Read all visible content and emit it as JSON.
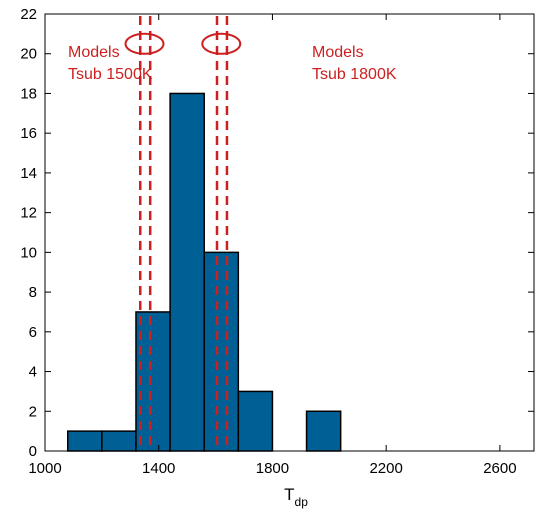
{
  "chart_data": {
    "type": "bar",
    "title": "",
    "xlabel": "T",
    "xlabel_sub": "dp",
    "ylabel": "",
    "xlim": [
      1000,
      2720
    ],
    "ylim": [
      0,
      22
    ],
    "xticks": [
      1000,
      1400,
      1800,
      2200,
      2600
    ],
    "yticks": [
      0,
      2,
      4,
      6,
      8,
      10,
      12,
      14,
      16,
      18,
      20,
      22
    ],
    "bins": [
      {
        "x0": 1080,
        "x1": 1200,
        "value": 1
      },
      {
        "x0": 1200,
        "x1": 1320,
        "value": 1
      },
      {
        "x0": 1320,
        "x1": 1440,
        "value": 7
      },
      {
        "x0": 1440,
        "x1": 1560,
        "value": 18
      },
      {
        "x0": 1560,
        "x1": 1680,
        "value": 10
      },
      {
        "x0": 1680,
        "x1": 1800,
        "value": 3
      },
      {
        "x0": 1920,
        "x1": 2040,
        "value": 2
      }
    ],
    "bar_color": "#006095",
    "annotation_color": "#cc1f1f",
    "annotations": [
      {
        "line1": "Models",
        "line2": "Tsub 1500K",
        "lines_x": [
          1335,
          1370
        ],
        "ellipse_center": [
          1350,
          20.5
        ]
      },
      {
        "line1": "Models",
        "line2": "Tsub 1800K",
        "lines_x": [
          1605,
          1640
        ],
        "ellipse_center": [
          1620,
          20.5
        ]
      }
    ]
  }
}
